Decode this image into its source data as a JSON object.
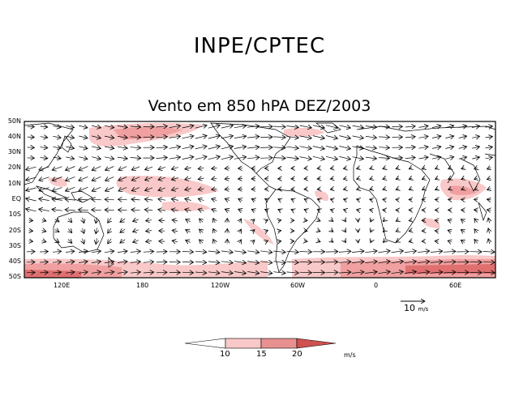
{
  "header": {
    "title": "INPE/CPTEC"
  },
  "map": {
    "title": "Vento em 850 hPA DEZ/2003",
    "lat_labels": [
      "50N",
      "40N",
      "30N",
      "20N",
      "10N",
      "EQ",
      "10S",
      "20S",
      "30S",
      "40S",
      "50S"
    ],
    "lon_labels": [
      "120E",
      "180",
      "120W",
      "60W",
      "0",
      "60E"
    ]
  },
  "reference_vector": {
    "value": "10",
    "unit": "m/s"
  },
  "colorbar": {
    "levels": [
      "10",
      "15",
      "20"
    ],
    "unit": "m/s",
    "colors": [
      "#ffffff",
      "#f9c8c8",
      "#f0a0a0",
      "#e07070",
      "#d05050"
    ]
  }
}
